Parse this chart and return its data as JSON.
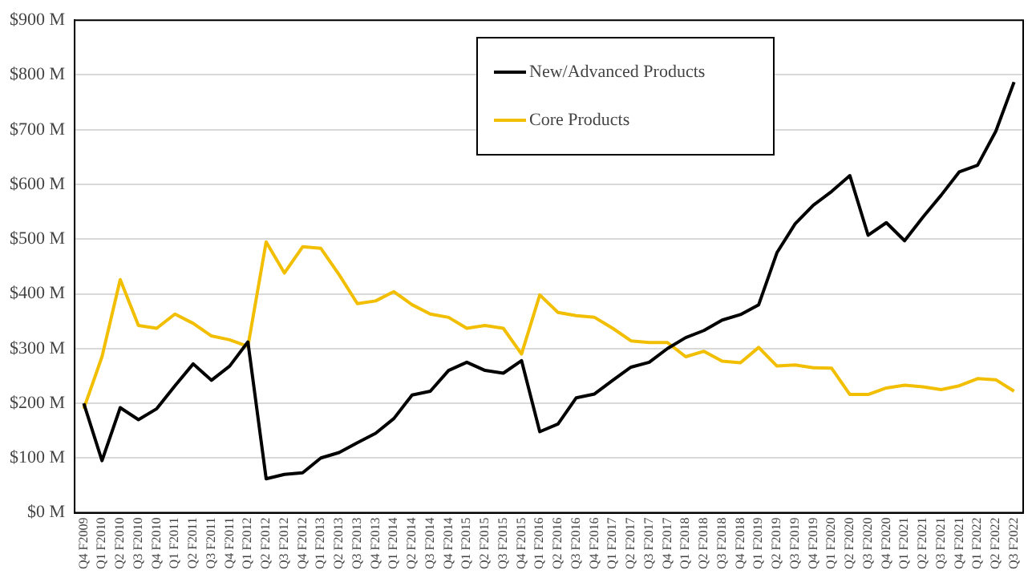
{
  "chart_data": {
    "type": "line",
    "categories": [
      "Q4 F2009",
      "Q1 F2010",
      "Q2 F2010",
      "Q3 F2010",
      "Q4 F2010",
      "Q1 F2011",
      "Q2 F2011",
      "Q3 F2011",
      "Q4 F2011",
      "Q1 F2012",
      "Q2 F2012",
      "Q3 F2012",
      "Q4 F2012",
      "Q1 F2013",
      "Q2 F2013",
      "Q3 F2013",
      "Q4 F2013",
      "Q1 F2014",
      "Q2 F2014",
      "Q3 F2014",
      "Q4 F2014",
      "Q1 F2015",
      "Q2 F2015",
      "Q3 F2015",
      "Q4 F2015",
      "Q1 F2016",
      "Q2 F2016",
      "Q3 F2016",
      "Q4 F2016",
      "Q1 F2017",
      "Q2 F2017",
      "Q3 F2017",
      "Q4 F2017",
      "Q1 F2018",
      "Q2 F2018",
      "Q3 F2018",
      "Q4 F2018",
      "Q1 F2019",
      "Q2 F2019",
      "Q3 F2019",
      "Q4 F2019",
      "Q1 F2020",
      "Q2 F2020",
      "Q3 F2020",
      "Q4 F2020",
      "Q1 F2021",
      "Q2 F2021",
      "Q3 F2021",
      "Q4 F2021",
      "Q1 F2022",
      "Q2 F2022",
      "Q3 F2022"
    ],
    "series": [
      {
        "name": "New/Advanced Products",
        "color": "#000000",
        "values": [
          200,
          95,
          192,
          170,
          190,
          232,
          272,
          242,
          268,
          312,
          62,
          70,
          73,
          100,
          110,
          128,
          145,
          172,
          215,
          222,
          260,
          275,
          260,
          255,
          278,
          148,
          162,
          210,
          217,
          242,
          266,
          275,
          300,
          320,
          333,
          352,
          362,
          380,
          475,
          528,
          562,
          587,
          616,
          507,
          530,
          497,
          540,
          580,
          623,
          635,
          697,
          787
        ]
      },
      {
        "name": "Core Products",
        "color": "#f2be00",
        "values": [
          190,
          285,
          426,
          342,
          337,
          363,
          346,
          323,
          316,
          304,
          495,
          438,
          486,
          483,
          435,
          382,
          387,
          404,
          380,
          363,
          357,
          337,
          342,
          337,
          290,
          398,
          366,
          360,
          357,
          337,
          314,
          311,
          311,
          285,
          295,
          277,
          274,
          302,
          268,
          270,
          265,
          264,
          216,
          216,
          228,
          233,
          230,
          225,
          232,
          245,
          243,
          222
        ]
      }
    ],
    "ylim": [
      0,
      900
    ],
    "yticks": [
      {
        "value": 0,
        "label": "$0 M"
      },
      {
        "value": 100,
        "label": "$100 M"
      },
      {
        "value": 200,
        "label": "$200 M"
      },
      {
        "value": 300,
        "label": "$300 M"
      },
      {
        "value": 400,
        "label": "$400 M"
      },
      {
        "value": 500,
        "label": "$500 M"
      },
      {
        "value": 600,
        "label": "$600 M"
      },
      {
        "value": 700,
        "label": "$700 M"
      },
      {
        "value": 800,
        "label": "$800 M"
      },
      {
        "value": 900,
        "label": "$900 M"
      }
    ],
    "grid": "y",
    "legend": "top right",
    "marker": "none",
    "line_style": "solid"
  }
}
